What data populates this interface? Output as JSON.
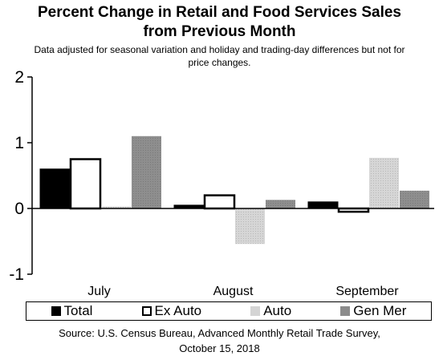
{
  "header": {
    "title": "Percent Change in Retail and Food Services Sales\nfrom Previous Month",
    "subtitle": "Data adjusted for seasonal variation and holiday and trading-day differences but not for\nprice changes."
  },
  "footer": {
    "source": "Source: U.S. Census Bureau, Advanced Monthly Retail Trade Survey,\nOctober 15, 2018"
  },
  "colors": {
    "Total": "#000000",
    "Ex Auto": "#ffffff",
    "Auto": "#d4d4d4",
    "Gen Mer": "#8c8c8c"
  },
  "chart_data": {
    "type": "bar",
    "categories": [
      "July",
      "August",
      "September"
    ],
    "series": [
      {
        "name": "Total",
        "values": [
          0.6,
          0.05,
          0.1
        ]
      },
      {
        "name": "Ex Auto",
        "values": [
          0.75,
          0.2,
          -0.05
        ]
      },
      {
        "name": "Auto",
        "values": [
          0.03,
          -0.54,
          0.77
        ]
      },
      {
        "name": "Gen Mer",
        "values": [
          1.1,
          0.13,
          0.27
        ]
      }
    ],
    "ylim": [
      -1,
      2
    ],
    "yticks": [
      "-1",
      "0",
      "1",
      "2"
    ],
    "legend_position": "bottom",
    "grid": false
  }
}
